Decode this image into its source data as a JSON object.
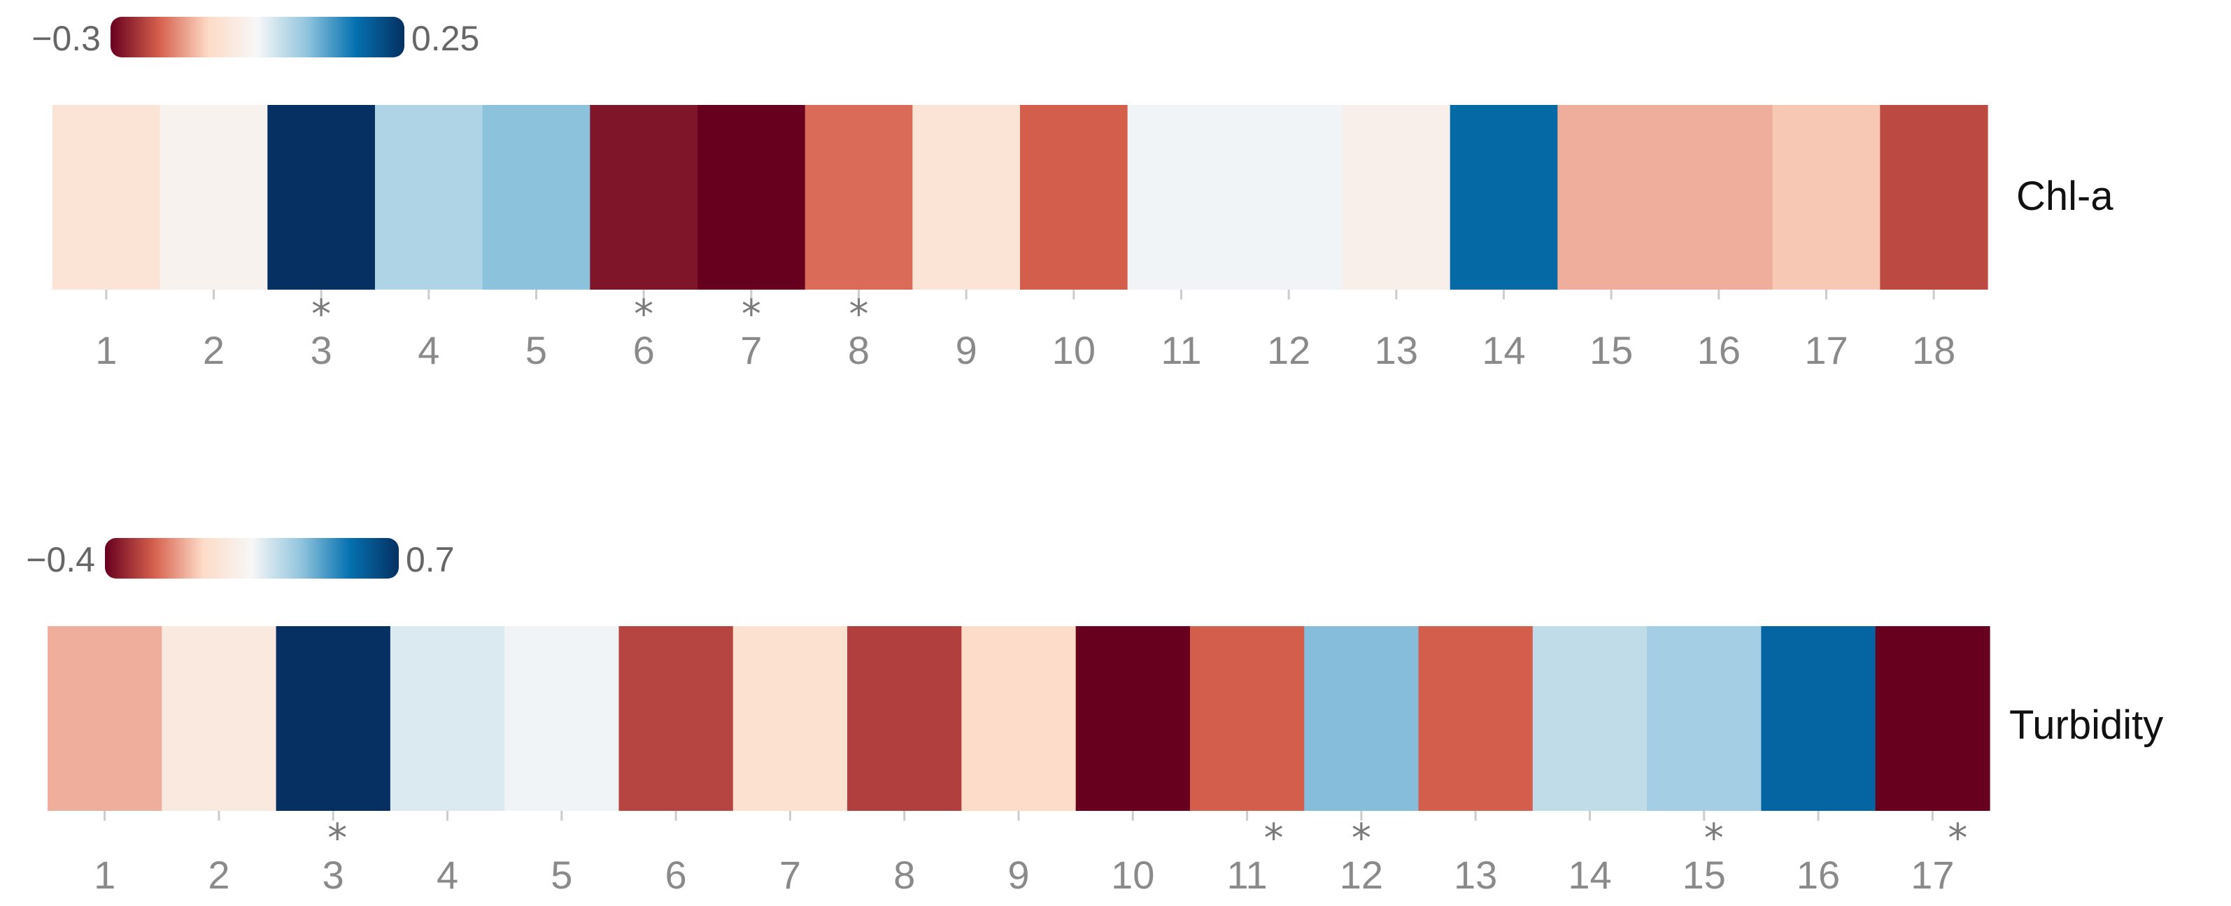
{
  "chart_data": [
    {
      "type": "heatmap",
      "row_label": "Chl-a",
      "legend": {
        "min": -0.3,
        "max": 0.25,
        "min_label": "−0.3",
        "max_label": "0.25",
        "colors": [
          "#67001f",
          "#d6604d",
          "#fddbc7",
          "#f7f7f7",
          "#92c5de",
          "#0571b0",
          "#053061"
        ]
      },
      "categories": [
        "1",
        "2",
        "3",
        "4",
        "5",
        "6",
        "7",
        "8",
        "9",
        "10",
        "11",
        "12",
        "13",
        "14",
        "15",
        "16",
        "17",
        "18"
      ],
      "values": [
        -0.09,
        -0.04,
        0.25,
        0.04,
        0.07,
        -0.28,
        -0.3,
        -0.2,
        -0.09,
        -0.21,
        -0.02,
        -0.02,
        -0.05,
        0.17,
        -0.15,
        -0.15,
        -0.13,
        -0.23
      ],
      "significant": [
        "3",
        "6",
        "7",
        "8"
      ],
      "significance_marker": "*"
    },
    {
      "type": "heatmap",
      "row_label": "Turbidity",
      "legend": {
        "min": -0.4,
        "max": 0.7,
        "min_label": "−0.4",
        "max_label": "0.7",
        "colors": [
          "#67001f",
          "#d6604d",
          "#fddbc7",
          "#f7f7f7",
          "#92c5de",
          "#0571b0",
          "#053061"
        ]
      },
      "categories": [
        "1",
        "2",
        "3",
        "4",
        "5",
        "6",
        "7",
        "8",
        "9",
        "10",
        "11",
        "12",
        "13",
        "14",
        "15",
        "16",
        "17"
      ],
      "values": [
        -0.1,
        0.06,
        0.7,
        0.2,
        0.16,
        -0.27,
        0.0,
        -0.28,
        -0.02,
        -0.4,
        -0.22,
        0.35,
        -0.22,
        0.25,
        0.3,
        0.55,
        -0.4
      ],
      "significant": [
        "3",
        "11",
        "12",
        "15",
        "17"
      ],
      "significance_marker": "*"
    }
  ]
}
